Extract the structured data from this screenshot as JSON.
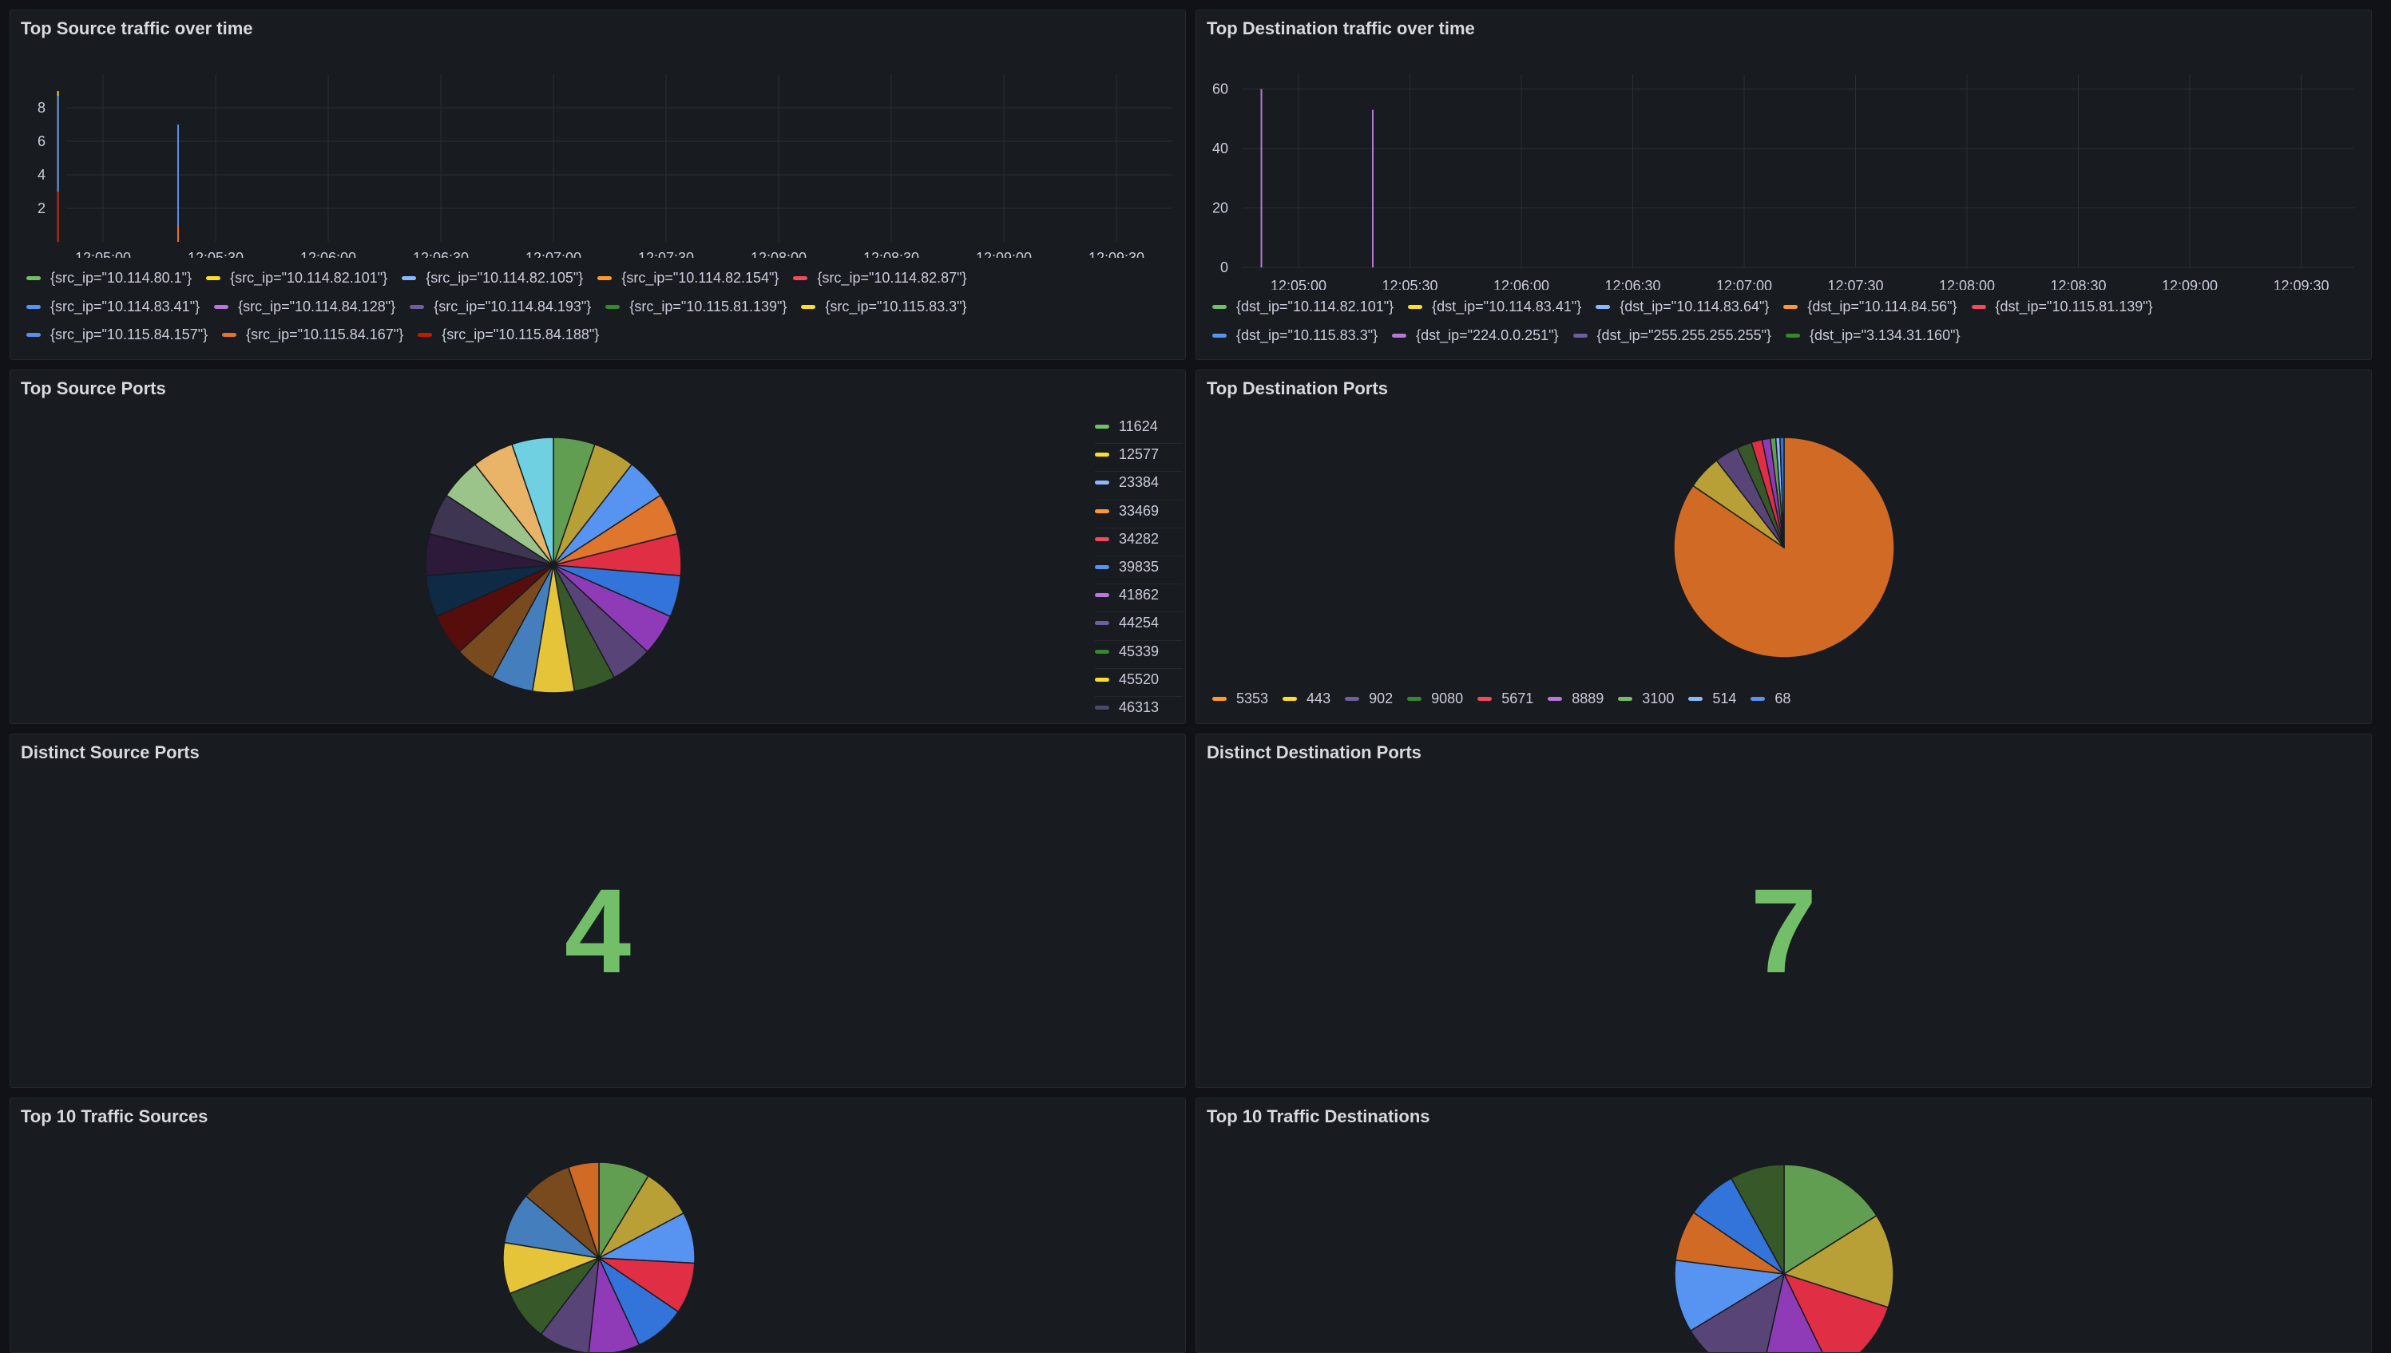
{
  "panels": {
    "src_traffic": {
      "title": "Top Source traffic over time",
      "legend_rows": [
        [
          {
            "label": "{src_ip=\"10.114.80.1\"}",
            "color": "#73bf69"
          },
          {
            "label": "{src_ip=\"10.114.82.101\"}",
            "color": "#fade2a"
          },
          {
            "label": "{src_ip=\"10.114.82.105\"}",
            "color": "#8ab8ff"
          },
          {
            "label": "{src_ip=\"10.114.82.154\"}",
            "color": "#ff9830"
          },
          {
            "label": "{src_ip=\"10.114.82.87\"}",
            "color": "#f2495c"
          }
        ],
        [
          {
            "label": "{src_ip=\"10.114.83.41\"}",
            "color": "#5794f2"
          },
          {
            "label": "{src_ip=\"10.114.84.128\"}",
            "color": "#b877d9"
          },
          {
            "label": "{src_ip=\"10.114.84.193\"}",
            "color": "#705da0"
          },
          {
            "label": "{src_ip=\"10.115.81.139\"}",
            "color": "#37872d"
          },
          {
            "label": "{src_ip=\"10.115.83.3\"}",
            "color": "#fade2a"
          }
        ],
        [
          {
            "label": "{src_ip=\"10.115.84.157\"}",
            "color": "#5b8ee6"
          },
          {
            "label": "{src_ip=\"10.115.84.167\"}",
            "color": "#e0752d"
          },
          {
            "label": "{src_ip=\"10.115.84.188\"}",
            "color": "#bf1b00"
          }
        ]
      ]
    },
    "dst_traffic": {
      "title": "Top Destination traffic over time",
      "legend_rows": [
        [
          {
            "label": "{dst_ip=\"10.114.82.101\"}",
            "color": "#73bf69"
          },
          {
            "label": "{dst_ip=\"10.114.83.41\"}",
            "color": "#fade2a"
          },
          {
            "label": "{dst_ip=\"10.114.83.64\"}",
            "color": "#8ab8ff"
          },
          {
            "label": "{dst_ip=\"10.114.84.56\"}",
            "color": "#ff9830"
          },
          {
            "label": "{dst_ip=\"10.115.81.139\"}",
            "color": "#f2495c"
          }
        ],
        [
          {
            "label": "{dst_ip=\"10.115.83.3\"}",
            "color": "#5794f2"
          },
          {
            "label": "{dst_ip=\"224.0.0.251\"}",
            "color": "#b877d9"
          },
          {
            "label": "{dst_ip=\"255.255.255.255\"}",
            "color": "#705da0"
          },
          {
            "label": "{dst_ip=\"3.134.31.160\"}",
            "color": "#37872d"
          }
        ]
      ]
    },
    "src_ports": {
      "title": "Top Source Ports",
      "legend": [
        {
          "label": "11624",
          "color": "#73bf69"
        },
        {
          "label": "12577",
          "color": "#fade2a"
        },
        {
          "label": "23384",
          "color": "#8ab8ff"
        },
        {
          "label": "33469",
          "color": "#ff9830"
        },
        {
          "label": "34282",
          "color": "#f2495c"
        },
        {
          "label": "39835",
          "color": "#5794f2"
        },
        {
          "label": "41862",
          "color": "#b877d9"
        },
        {
          "label": "44254",
          "color": "#705da0"
        },
        {
          "label": "45339",
          "color": "#37872d"
        },
        {
          "label": "45520",
          "color": "#fade2a"
        },
        {
          "label": "46313",
          "color": "#4a4a6a"
        }
      ]
    },
    "dst_ports": {
      "title": "Top Destination Ports",
      "legend": [
        {
          "label": "5353",
          "color": "#ff9830"
        },
        {
          "label": "443",
          "color": "#fade2a"
        },
        {
          "label": "902",
          "color": "#705da0"
        },
        {
          "label": "9080",
          "color": "#37872d"
        },
        {
          "label": "5671",
          "color": "#f2495c"
        },
        {
          "label": "8889",
          "color": "#b877d9"
        },
        {
          "label": "3100",
          "color": "#73bf69"
        },
        {
          "label": "514",
          "color": "#8ab8ff"
        },
        {
          "label": "68",
          "color": "#5794f2"
        }
      ]
    },
    "distinct_src": {
      "title": "Distinct Source Ports",
      "value": "4",
      "color": "#73bf69"
    },
    "distinct_dst": {
      "title": "Distinct Destination Ports",
      "value": "7",
      "color": "#73bf69"
    },
    "top_sources": {
      "title": "Top 10 Traffic Sources"
    },
    "top_destinations": {
      "title": "Top 10 Traffic Destinations"
    }
  },
  "chart_data": [
    {
      "type": "line",
      "title": "Top Source traffic over time",
      "x_ticks": [
        "12:05:00",
        "12:05:30",
        "12:06:00",
        "12:06:30",
        "12:07:00",
        "12:07:30",
        "12:08:00",
        "12:08:30",
        "12:09:00",
        "12:09:30"
      ],
      "y_ticks": [
        2,
        4,
        6,
        8
      ],
      "ylim": [
        0,
        10
      ],
      "grid": true,
      "legend_position": "bottom",
      "spikes": [
        {
          "x": "12:04:48",
          "y": 9,
          "color": "#fade2a"
        },
        {
          "x": "12:04:48",
          "y": 8.7,
          "color": "#5794f2"
        },
        {
          "x": "12:04:48",
          "y": 3,
          "color": "#bf1b00"
        },
        {
          "x": "12:05:20",
          "y": 7,
          "color": "#5b8ee6"
        },
        {
          "x": "12:05:20",
          "y": 1,
          "color": "#e0752d"
        }
      ]
    },
    {
      "type": "line",
      "title": "Top Destination traffic over time",
      "x_ticks": [
        "12:05:00",
        "12:05:30",
        "12:06:00",
        "12:06:30",
        "12:07:00",
        "12:07:30",
        "12:08:00",
        "12:08:30",
        "12:09:00",
        "12:09:30"
      ],
      "y_ticks": [
        0,
        20,
        40,
        60
      ],
      "ylim": [
        0,
        65
      ],
      "grid": true,
      "legend_position": "bottom",
      "spikes": [
        {
          "x": "12:04:50",
          "y": 60,
          "color": "#b877d9"
        },
        {
          "x": "12:05:20",
          "y": 53,
          "color": "#b877d9"
        }
      ]
    },
    {
      "type": "pie",
      "title": "Top Source Ports",
      "legend_position": "right",
      "slice_colors": [
        "#629e51",
        "#b8a037",
        "#5794f2",
        "#e0752d",
        "#e02f44",
        "#3274d9",
        "#8f3bb8",
        "#584477",
        "#37592a",
        "#e5c43a",
        "#447ebc",
        "#7a4a1f",
        "#580d0d",
        "#0e2a44",
        "#2d1a3a",
        "#3e3552",
        "#9ac48a",
        "#eab468",
        "#6ed0e0"
      ],
      "values": [
        1,
        1,
        1,
        1,
        1,
        1,
        1,
        1,
        1,
        1,
        1,
        1,
        1,
        1,
        1,
        1,
        1,
        1,
        1
      ]
    },
    {
      "type": "pie",
      "title": "Top Destination Ports",
      "legend_position": "bottom",
      "categories": [
        "5353",
        "443",
        "902",
        "9080",
        "5671",
        "8889",
        "3100",
        "514",
        "68"
      ],
      "values": [
        84.5,
        5,
        3.5,
        2.2,
        1.6,
        1.2,
        0.8,
        0.6,
        0.6
      ],
      "slice_colors": [
        "#d06a25",
        "#b8a037",
        "#584477",
        "#37592a",
        "#e02f44",
        "#8f3bb8",
        "#629e51",
        "#8ab8ff",
        "#3274d9"
      ]
    },
    {
      "type": "pie",
      "title": "Top 10 Traffic Sources",
      "values": [
        1,
        1,
        1,
        1,
        1,
        1,
        1,
        1,
        1,
        1,
        1,
        0.6
      ],
      "slice_colors": [
        "#629e51",
        "#b8a037",
        "#5794f2",
        "#e02f44",
        "#3274d9",
        "#8f3bb8",
        "#584477",
        "#37592a",
        "#e5c43a",
        "#447ebc",
        "#7a4a1f",
        "#d06a25"
      ]
    },
    {
      "type": "pie",
      "title": "Top 10 Traffic Destinations",
      "values": [
        15,
        13,
        12,
        10,
        12,
        10,
        7,
        7,
        7.5
      ],
      "slice_colors": [
        "#629e51",
        "#b8a037",
        "#e02f44",
        "#8f3bb8",
        "#584477",
        "#5794f2",
        "#d06a25",
        "#3274d9",
        "#37592a"
      ]
    }
  ]
}
